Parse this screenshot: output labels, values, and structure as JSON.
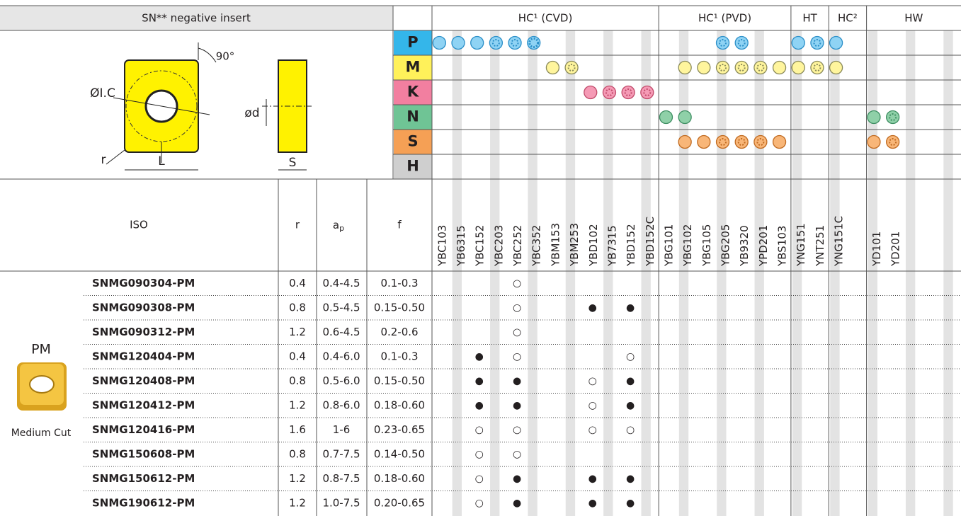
{
  "header": {
    "title": "SN** negative insert"
  },
  "diagram": {
    "angle": "90°",
    "ic": "ØI.C",
    "d": "ød",
    "r": "r",
    "L": "L",
    "S": "S"
  },
  "materials": [
    "P",
    "M",
    "K",
    "N",
    "S",
    "H"
  ],
  "groups": [
    {
      "label": "HC¹ (CVD)",
      "grades": [
        "YBC103",
        "YB6315",
        "YBC152",
        "YBC203",
        "YBC252",
        "YBC352",
        "YBM153",
        "YBM253",
        "YBD102",
        "YB7315",
        "YBD152",
        "YBD152C"
      ]
    },
    {
      "label": "HC¹ (PVD)",
      "grades": [
        "YBG101",
        "YBG102",
        "YBG105",
        "YBG205",
        "YB9320",
        "YPD201",
        "YBS103"
      ]
    },
    {
      "label": "HT",
      "grades": [
        "YNG151",
        "YNT251"
      ]
    },
    {
      "label": "HC²",
      "grades": [
        "YNG151C"
      ]
    },
    {
      "label": "HW",
      "grades": [
        "YD101",
        "YD201"
      ]
    }
  ],
  "table": {
    "headers": {
      "iso": "ISO",
      "r": "r",
      "ap": "a",
      "ap_sub": "p",
      "f": "f"
    },
    "group": {
      "name": "PM",
      "caption": "Medium Cut"
    },
    "rows": [
      {
        "designation": "SNMG090304-PM",
        "r": "0.4",
        "ap": "0.4-4.5",
        "f": "0.1-0.3",
        "marks": {
          "YBC252": "○"
        }
      },
      {
        "designation": "SNMG090308-PM",
        "r": "0.8",
        "ap": "0.5-4.5",
        "f": "0.15-0.50",
        "marks": {
          "YBC252": "○",
          "YBD102": "●",
          "YBD152": "●"
        }
      },
      {
        "designation": "SNMG090312-PM",
        "r": "1.2",
        "ap": "0.6-4.5",
        "f": "0.2-0.6",
        "marks": {
          "YBC252": "○"
        }
      },
      {
        "designation": "SNMG120404-PM",
        "r": "0.4",
        "ap": "0.4-6.0",
        "f": "0.1-0.3",
        "marks": {
          "YBC152": "●",
          "YBC252": "○",
          "YBD152": "○"
        }
      },
      {
        "designation": "SNMG120408-PM",
        "r": "0.8",
        "ap": "0.5-6.0",
        "f": "0.15-0.50",
        "marks": {
          "YBC152": "●",
          "YBC252": "●",
          "YBD102": "○",
          "YBD152": "●"
        }
      },
      {
        "designation": "SNMG120412-PM",
        "r": "1.2",
        "ap": "0.8-6.0",
        "f": "0.18-0.60",
        "marks": {
          "YBC152": "●",
          "YBC252": "●",
          "YBD102": "○",
          "YBD152": "●"
        }
      },
      {
        "designation": "SNMG120416-PM",
        "r": "1.6",
        "ap": "1-6",
        "f": "0.23-0.65",
        "marks": {
          "YBC152": "○",
          "YBC252": "○",
          "YBD102": "○",
          "YBD152": "○"
        }
      },
      {
        "designation": "SNMG150608-PM",
        "r": "0.8",
        "ap": "0.7-7.5",
        "f": "0.14-0.50",
        "marks": {
          "YBC152": "○",
          "YBC252": "○"
        }
      },
      {
        "designation": "SNMG150612-PM",
        "r": "1.2",
        "ap": "0.8-7.5",
        "f": "0.18-0.60",
        "marks": {
          "YBC152": "○",
          "YBC252": "●",
          "YBD102": "●",
          "YBD152": "●"
        }
      },
      {
        "designation": "SNMG190612-PM",
        "r": "1.2",
        "ap": "1.0-7.5",
        "f": "0.20-0.65",
        "marks": {
          "YBC152": "○",
          "YBC252": "●",
          "YBD102": "●",
          "YBD152": "●"
        }
      }
    ]
  }
}
